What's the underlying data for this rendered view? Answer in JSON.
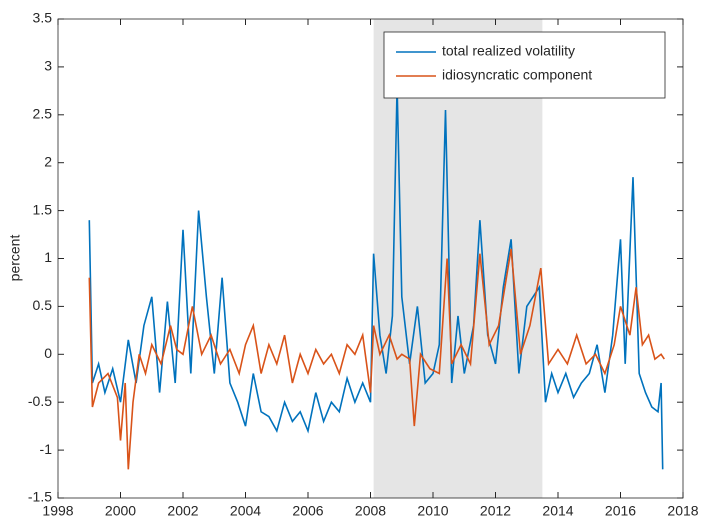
{
  "chart_data": {
    "type": "line",
    "ylabel": "percent",
    "xlim": [
      1998,
      2018
    ],
    "xticks": [
      1998,
      2000,
      2002,
      2004,
      2006,
      2008,
      2010,
      2012,
      2014,
      2016,
      2018
    ],
    "ylim": [
      -1.5,
      3.5
    ],
    "yticks": [
      -1.5,
      -1,
      -0.5,
      0,
      0.5,
      1,
      1.5,
      2,
      2.5,
      3,
      3.5
    ],
    "legend": "upper-right",
    "shaded_region": {
      "xlim": [
        2008.1,
        2013.5
      ],
      "color": "#e5e5e5"
    },
    "series": [
      {
        "name": "total realized volatility",
        "color": "#0072bd",
        "x": [
          1999.0,
          1999.1,
          1999.3,
          1999.5,
          1999.75,
          2000.0,
          2000.25,
          2000.5,
          2000.75,
          2001.0,
          2001.25,
          2001.5,
          2001.75,
          2002.0,
          2002.25,
          2002.5,
          2002.75,
          2003.0,
          2003.25,
          2003.5,
          2003.75,
          2004.0,
          2004.25,
          2004.5,
          2004.75,
          2005.0,
          2005.25,
          2005.5,
          2005.75,
          2006.0,
          2006.25,
          2006.5,
          2006.75,
          2007.0,
          2007.25,
          2007.5,
          2007.75,
          2008.0,
          2008.1,
          2008.3,
          2008.5,
          2008.7,
          2008.85,
          2009.0,
          2009.25,
          2009.5,
          2009.75,
          2010.0,
          2010.2,
          2010.4,
          2010.6,
          2010.8,
          2011.0,
          2011.3,
          2011.5,
          2011.75,
          2012.0,
          2012.25,
          2012.5,
          2012.75,
          2013.0,
          2013.4,
          2013.6,
          2013.8,
          2014.0,
          2014.25,
          2014.5,
          2014.75,
          2015.0,
          2015.25,
          2015.5,
          2015.75,
          2016.0,
          2016.15,
          2016.4,
          2016.6,
          2016.8,
          2017.0,
          2017.2,
          2017.3,
          2017.35
        ],
        "values": [
          1.4,
          -0.3,
          -0.1,
          -0.4,
          -0.15,
          -0.5,
          0.15,
          -0.3,
          0.3,
          0.6,
          -0.4,
          0.55,
          -0.3,
          1.3,
          -0.2,
          1.5,
          0.6,
          -0.2,
          0.8,
          -0.3,
          -0.5,
          -0.75,
          -0.2,
          -0.6,
          -0.65,
          -0.8,
          -0.5,
          -0.7,
          -0.6,
          -0.8,
          -0.4,
          -0.7,
          -0.5,
          -0.6,
          -0.25,
          -0.5,
          -0.3,
          -0.5,
          1.05,
          0.2,
          -0.2,
          0.4,
          2.8,
          0.6,
          -0.1,
          0.5,
          -0.3,
          -0.2,
          0.1,
          2.55,
          -0.3,
          0.4,
          -0.2,
          0.3,
          1.4,
          0.2,
          -0.1,
          0.7,
          1.2,
          -0.2,
          0.5,
          0.7,
          -0.5,
          -0.2,
          -0.4,
          -0.2,
          -0.45,
          -0.3,
          -0.2,
          0.1,
          -0.4,
          0.2,
          1.2,
          -0.1,
          1.85,
          -0.2,
          -0.4,
          -0.55,
          -0.6,
          -0.3,
          -1.2
        ]
      },
      {
        "name": "idiosyncratic component",
        "color": "#d95319",
        "x": [
          1999.0,
          1999.1,
          1999.3,
          1999.6,
          1999.9,
          2000.0,
          2000.15,
          2000.25,
          2000.4,
          2000.6,
          2000.8,
          2001.0,
          2001.3,
          2001.6,
          2001.8,
          2002.0,
          2002.3,
          2002.6,
          2002.9,
          2003.2,
          2003.5,
          2003.8,
          2004.0,
          2004.25,
          2004.5,
          2004.75,
          2005.0,
          2005.25,
          2005.5,
          2005.75,
          2006.0,
          2006.25,
          2006.5,
          2006.75,
          2007.0,
          2007.25,
          2007.5,
          2007.75,
          2008.0,
          2008.1,
          2008.3,
          2008.6,
          2008.85,
          2009.0,
          2009.25,
          2009.4,
          2009.6,
          2009.9,
          2010.2,
          2010.45,
          2010.6,
          2010.9,
          2011.2,
          2011.5,
          2011.8,
          2012.1,
          2012.5,
          2012.8,
          2013.1,
          2013.45,
          2013.7,
          2014.0,
          2014.3,
          2014.6,
          2014.9,
          2015.2,
          2015.5,
          2015.8,
          2016.0,
          2016.3,
          2016.5,
          2016.7,
          2016.9,
          2017.1,
          2017.3,
          2017.4
        ],
        "values": [
          0.8,
          -0.55,
          -0.3,
          -0.2,
          -0.45,
          -0.9,
          -0.3,
          -1.2,
          -0.5,
          0.0,
          -0.2,
          0.1,
          -0.1,
          0.3,
          0.05,
          0.0,
          0.5,
          0.0,
          0.2,
          -0.1,
          0.05,
          -0.2,
          0.1,
          0.3,
          -0.2,
          0.1,
          -0.1,
          0.2,
          -0.3,
          0.0,
          -0.2,
          0.05,
          -0.1,
          0.0,
          -0.2,
          0.1,
          0.0,
          0.2,
          -0.4,
          0.3,
          0.0,
          0.2,
          -0.05,
          0.0,
          -0.05,
          -0.75,
          0.0,
          -0.15,
          -0.2,
          1.0,
          -0.1,
          0.1,
          -0.1,
          1.05,
          0.1,
          0.3,
          1.1,
          0.0,
          0.3,
          0.9,
          -0.1,
          0.05,
          -0.1,
          0.2,
          -0.1,
          0.0,
          -0.2,
          0.1,
          0.5,
          0.2,
          0.7,
          0.1,
          0.2,
          -0.05,
          0.0,
          -0.05
        ]
      }
    ]
  }
}
